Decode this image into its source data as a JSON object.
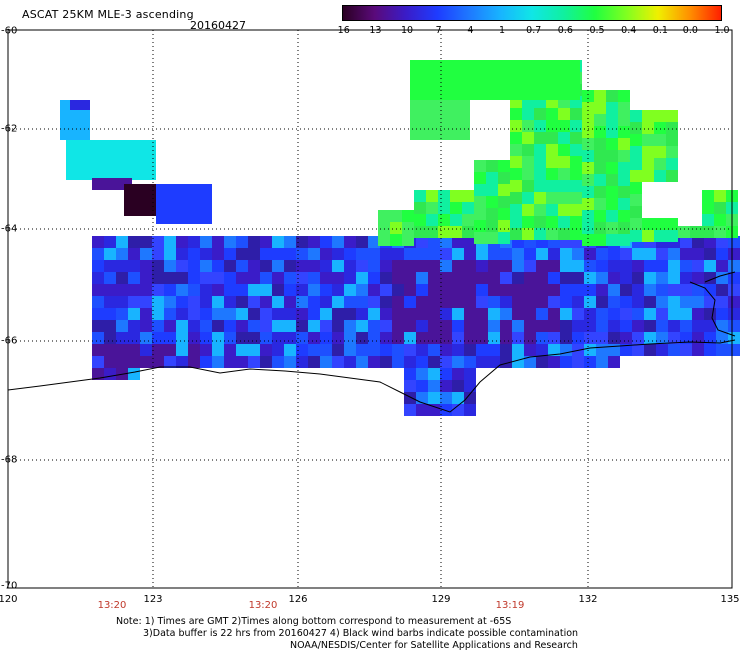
{
  "header": {
    "title": "ASCAT 25KM MLE-3 ascending",
    "date": "20160427"
  },
  "colorbar": {
    "labels": [
      "-16",
      "-13",
      "-10",
      "-7",
      "-4",
      "-1",
      "-0.7",
      "-0.6",
      "-0.5",
      "-0.4",
      "-0.1",
      "0.0",
      "1.0"
    ],
    "colors": [
      "#2a0022",
      "#5a0a7a",
      "#3a1cc8",
      "#1e3cff",
      "#1e78ff",
      "#18b4ff",
      "#10e6e6",
      "#10f0a0",
      "#20ff40",
      "#80ff20",
      "#f0f000",
      "#ff9000",
      "#ff2000"
    ]
  },
  "map": {
    "lat_labels": [
      "-60",
      "-62",
      "-64",
      "-66",
      "-68",
      "-70"
    ],
    "lon_labels": [
      "120",
      "123",
      "126",
      "129",
      "132",
      "135"
    ],
    "times": [
      "13:20",
      "13:20",
      "13:19"
    ]
  },
  "notes": {
    "line1": "Note: 1) Times are GMT 2)Times along bottom correspond to measurement at -65S",
    "line2": "3)Data buffer is 22 hrs from 20160427 4) Black wind barbs indicate possible contamination",
    "line3": "NOAA/NESDIS/Center for Satellite Applications and Research"
  }
}
